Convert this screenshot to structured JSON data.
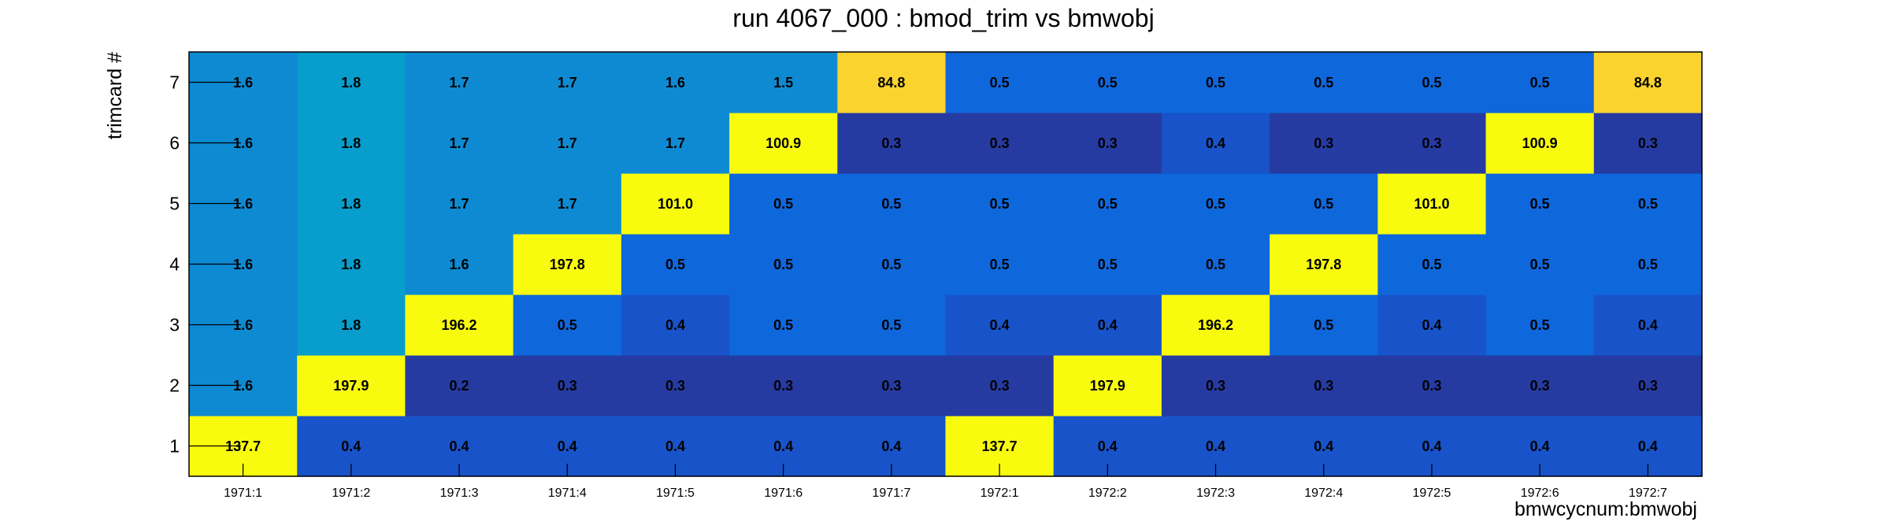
{
  "chart_data": {
    "type": "heatmap",
    "title": "run 4067_000 : bmod_trim vs bmwobj",
    "xlabel": "bmwcycnum:bmwobj",
    "ylabel": "trimcard #",
    "x_categories": [
      "1971:1",
      "1971:2",
      "1971:3",
      "1971:4",
      "1971:5",
      "1971:6",
      "1971:7",
      "1972:1",
      "1972:2",
      "1972:3",
      "1972:4",
      "1972:5",
      "1972:6",
      "1972:7"
    ],
    "y_categories": [
      "1",
      "2",
      "3",
      "4",
      "5",
      "6",
      "7"
    ],
    "values": [
      [
        137.7,
        0.4,
        0.4,
        0.4,
        0.4,
        0.4,
        0.4,
        137.7,
        0.4,
        0.4,
        0.4,
        0.4,
        0.4,
        0.4
      ],
      [
        1.6,
        197.9,
        0.2,
        0.3,
        0.3,
        0.3,
        0.3,
        0.3,
        197.9,
        0.3,
        0.3,
        0.3,
        0.3,
        0.3
      ],
      [
        1.6,
        1.8,
        196.2,
        0.5,
        0.4,
        0.5,
        0.5,
        0.4,
        0.4,
        196.2,
        0.5,
        0.4,
        0.5,
        0.4
      ],
      [
        1.6,
        1.8,
        1.6,
        197.8,
        0.5,
        0.5,
        0.5,
        0.5,
        0.5,
        0.5,
        197.8,
        0.5,
        0.5,
        0.5
      ],
      [
        1.6,
        1.8,
        1.7,
        1.7,
        101.0,
        0.5,
        0.5,
        0.5,
        0.5,
        0.5,
        0.5,
        101.0,
        0.5,
        0.5
      ],
      [
        1.6,
        1.8,
        1.7,
        1.7,
        1.7,
        100.9,
        0.3,
        0.3,
        0.3,
        0.4,
        0.3,
        0.3,
        100.9,
        0.3
      ],
      [
        1.6,
        1.8,
        1.7,
        1.7,
        1.6,
        1.5,
        84.8,
        0.5,
        0.5,
        0.5,
        0.5,
        0.5,
        0.5,
        84.8
      ]
    ],
    "colormap": "parula",
    "legend": "none",
    "grid": false
  },
  "colors": {
    "high": "#f9fb0e",
    "peak_mid": "#fbd32e",
    "low": "#263ba2",
    "mid_low": "#1853c9",
    "mid": "#0f67dc",
    "mid_high": "#0e8ad2",
    "upper": "#079dcc"
  }
}
